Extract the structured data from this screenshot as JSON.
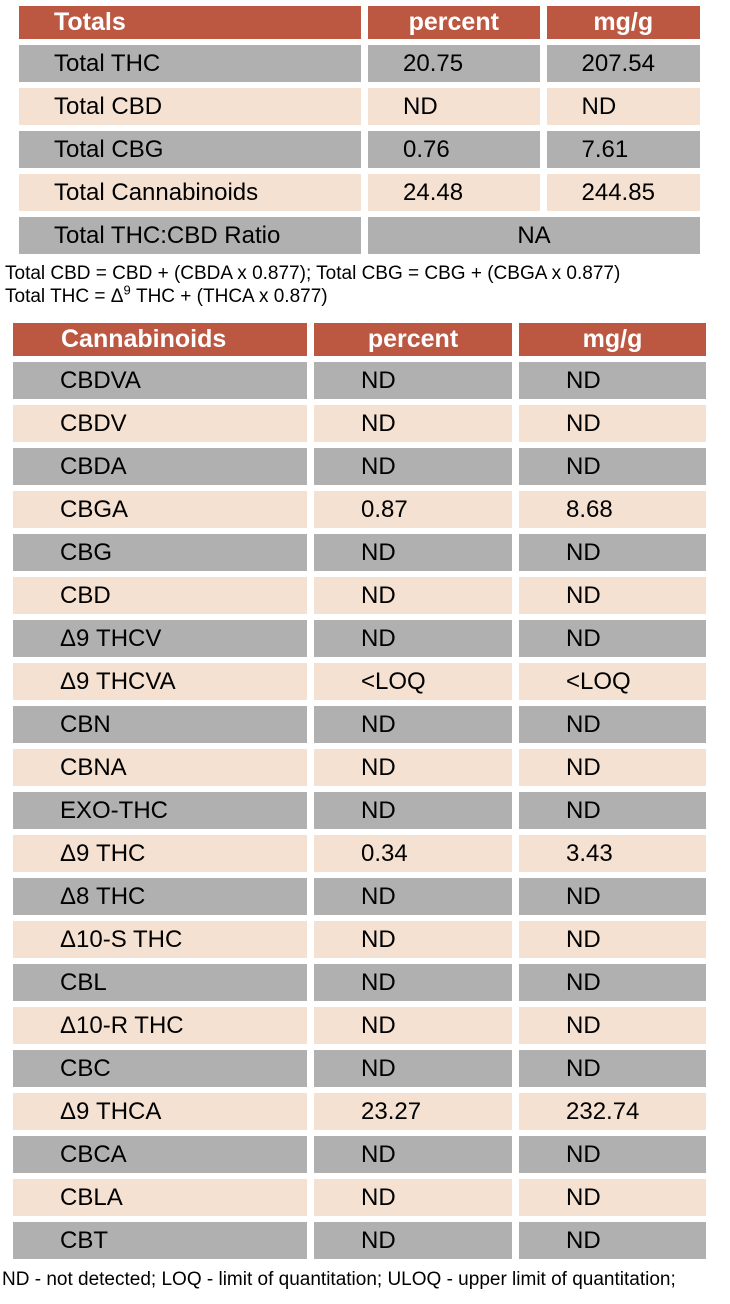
{
  "colors": {
    "header_bg": "#bc5742",
    "row_gray": "#b0b0b0",
    "row_peach": "#f4e1d1",
    "header_text": "#ffffff",
    "text": "#000000"
  },
  "totals_table": {
    "headers": [
      "Totals",
      "percent",
      "mg/g"
    ],
    "rows": [
      {
        "label": "Total THC",
        "percent": "20.75",
        "mgg": "207.54"
      },
      {
        "label": "Total CBD",
        "percent": "ND",
        "mgg": "ND"
      },
      {
        "label": "Total CBG",
        "percent": "0.76",
        "mgg": "7.61"
      },
      {
        "label": "Total Cannabinoids",
        "percent": "24.48",
        "mgg": "244.85"
      }
    ],
    "ratio_row": {
      "label": "Total THC:CBD Ratio",
      "value": "NA"
    }
  },
  "totals_footnotes": {
    "line1": "Total CBD = CBD + (CBDA x 0.877); Total CBG = CBG + (CBGA x 0.877)",
    "line2_prefix": "Total THC = Δ",
    "line2_sup": "9",
    "line2_suffix": " THC + (THCA x 0.877)"
  },
  "cannabinoids_table": {
    "headers": [
      "Cannabinoids",
      "percent",
      "mg/g"
    ],
    "rows": [
      {
        "label": "CBDVA",
        "percent": "ND",
        "mgg": "ND"
      },
      {
        "label": "CBDV",
        "percent": "ND",
        "mgg": "ND"
      },
      {
        "label": "CBDA",
        "percent": "ND",
        "mgg": "ND"
      },
      {
        "label": "CBGA",
        "percent": "0.87",
        "mgg": "8.68"
      },
      {
        "label": "CBG",
        "percent": "ND",
        "mgg": "ND"
      },
      {
        "label": "CBD",
        "percent": "ND",
        "mgg": "ND"
      },
      {
        "label": "Δ9 THCV",
        "percent": "ND",
        "mgg": "ND"
      },
      {
        "label": "Δ9 THCVA",
        "percent": "<LOQ",
        "mgg": "<LOQ"
      },
      {
        "label": "CBN",
        "percent": "ND",
        "mgg": "ND"
      },
      {
        "label": "CBNA",
        "percent": "ND",
        "mgg": "ND"
      },
      {
        "label": "EXO-THC",
        "percent": "ND",
        "mgg": "ND"
      },
      {
        "label": "Δ9 THC",
        "percent": "0.34",
        "mgg": "3.43"
      },
      {
        "label": "Δ8 THC",
        "percent": "ND",
        "mgg": "ND"
      },
      {
        "label": "Δ10-S THC",
        "percent": "ND",
        "mgg": "ND"
      },
      {
        "label": "CBL",
        "percent": "ND",
        "mgg": "ND"
      },
      {
        "label": "Δ10-R THC",
        "percent": "ND",
        "mgg": "ND"
      },
      {
        "label": "CBC",
        "percent": "ND",
        "mgg": "ND"
      },
      {
        "label": "Δ9 THCA",
        "percent": "23.27",
        "mgg": "232.74"
      },
      {
        "label": "CBCA",
        "percent": "ND",
        "mgg": "ND"
      },
      {
        "label": "CBLA",
        "percent": "ND",
        "mgg": "ND"
      },
      {
        "label": "CBT",
        "percent": "ND",
        "mgg": "ND"
      }
    ]
  },
  "bottom_footnote": "ND - not detected; LOQ - limit of quantitation; ULOQ - upper limit of quantitation;"
}
